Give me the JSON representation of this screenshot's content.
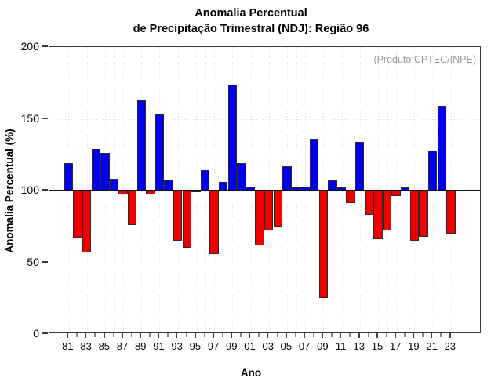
{
  "title": {
    "line1": "Anomalia Percentual",
    "line2": "de Precipitação Trimestral (NDJ): Região 96"
  },
  "annotation": "(Produto:CPTEC/INPE)",
  "chart_data": {
    "type": "bar",
    "title": "Anomalia Percentual de Precipitação Trimestral (NDJ): Região 96",
    "xlabel": "Ano",
    "ylabel": "Anomalia Percentual (%)",
    "ylim": [
      0,
      200
    ],
    "yticks": [
      0,
      50,
      100,
      150,
      200
    ],
    "baseline": 100,
    "grid": "dotted vertical line per year; dotted horizontal lines at 50 and 150; solid black line at 100",
    "legend_position": "none",
    "x_tick_labels": [
      "81",
      "83",
      "85",
      "87",
      "89",
      "91",
      "93",
      "95",
      "97",
      "99",
      "01",
      "03",
      "05",
      "07",
      "09",
      "11",
      "13",
      "15",
      "17",
      "19",
      "21",
      "23"
    ],
    "years": [
      1981,
      1982,
      1983,
      1984,
      1985,
      1986,
      1987,
      1988,
      1989,
      1990,
      1991,
      1992,
      1993,
      1994,
      1995,
      1996,
      1997,
      1998,
      1999,
      2000,
      2001,
      2002,
      2003,
      2004,
      2005,
      2006,
      2007,
      2008,
      2009,
      2010,
      2011,
      2012,
      2013,
      2014,
      2015,
      2016,
      2017,
      2018,
      2019,
      2020,
      2021,
      2022,
      2023
    ],
    "values": [
      119,
      67,
      57,
      129,
      126,
      108,
      97,
      76,
      163,
      97,
      153,
      107,
      65,
      60,
      100,
      114,
      56,
      106,
      174,
      119,
      103,
      62,
      72,
      75,
      117,
      102,
      103,
      136,
      25,
      107,
      102,
      91,
      134,
      83,
      66,
      72,
      96,
      102,
      65,
      68,
      128,
      159,
      70
    ],
    "colors": {
      "above_baseline": "#0000ee",
      "below_baseline": "#ee0000",
      "bar_outline": "#2a2a2a",
      "baseline_line": "#111111",
      "annotation_text": "#999999",
      "gridline": "#dddddd",
      "frame": "#3a3a3a"
    }
  }
}
